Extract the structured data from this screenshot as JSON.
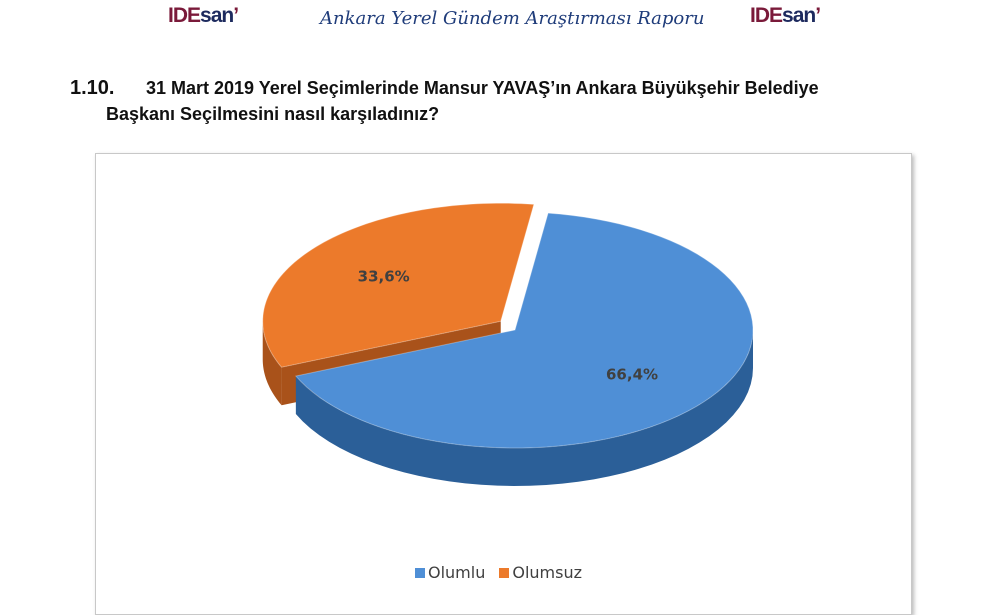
{
  "header": {
    "logo_text": "IDESAM",
    "title": "Ankara Yerel Gündem Araştırması Raporu"
  },
  "question": {
    "number": "1.10.",
    "line1": "31 Mart 2019 Yerel Seçimlerinde Mansur YAVAŞ’ın Ankara Büyükşehir Belediye",
    "line2": "Başkanı Seçilmesini nasıl karşıladınız?"
  },
  "chart_data": {
    "type": "pie",
    "style": "3d-exploded",
    "categories": [
      "Olumlu",
      "Olumsuz"
    ],
    "values": [
      66.4,
      33.6
    ],
    "data_labels": [
      "66,4%",
      "33,6%"
    ],
    "colors": [
      "#4f8fd6",
      "#ec7a2b"
    ],
    "legend": "bottom"
  }
}
